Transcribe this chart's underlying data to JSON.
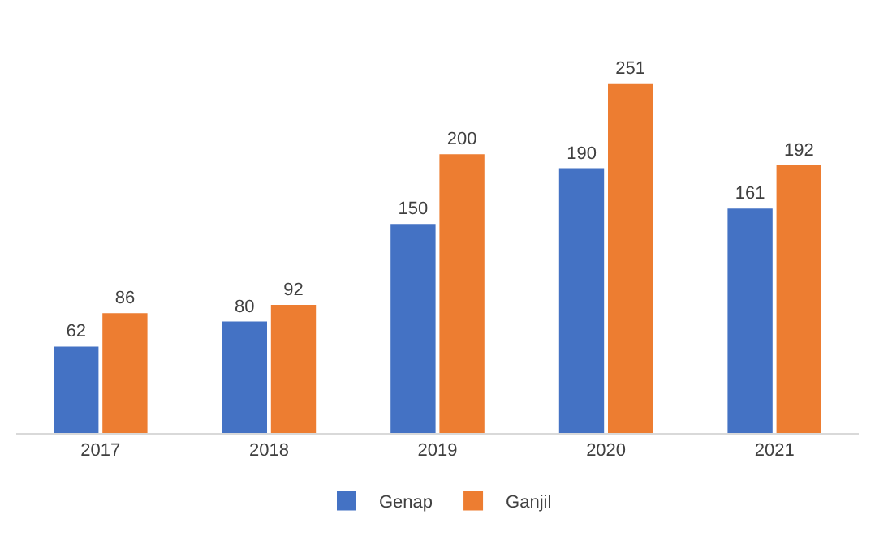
{
  "chart_data": {
    "type": "bar",
    "categories": [
      "2017",
      "2018",
      "2019",
      "2020",
      "2021"
    ],
    "series": [
      {
        "name": "Genap",
        "color": "#4472c4",
        "values": [
          62,
          80,
          150,
          190,
          161
        ]
      },
      {
        "name": "Ganjil",
        "color": "#ed7d31",
        "values": [
          86,
          92,
          200,
          251,
          192
        ]
      }
    ],
    "data_labels": true,
    "legend": "bottom",
    "grid": false
  }
}
